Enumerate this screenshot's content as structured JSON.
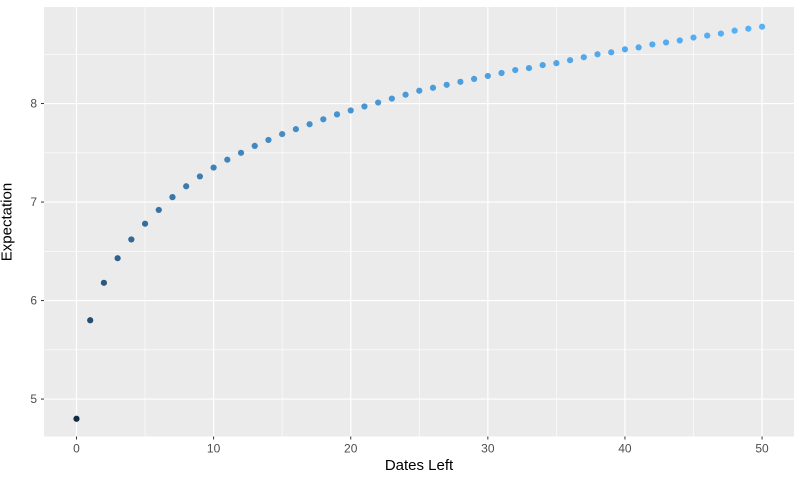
{
  "chart_data": {
    "type": "scatter",
    "title": "",
    "xlabel": "Dates Left",
    "ylabel": "Expectation",
    "x": [
      0,
      1,
      2,
      3,
      4,
      5,
      6,
      7,
      8,
      9,
      10,
      11,
      12,
      13,
      14,
      15,
      16,
      17,
      18,
      19,
      20,
      21,
      22,
      23,
      24,
      25,
      26,
      27,
      28,
      29,
      30,
      31,
      32,
      33,
      34,
      35,
      36,
      37,
      38,
      39,
      40,
      41,
      42,
      43,
      44,
      45,
      46,
      47,
      48,
      49,
      50
    ],
    "y": [
      4.8,
      5.8,
      6.18,
      6.43,
      6.62,
      6.78,
      6.92,
      7.05,
      7.16,
      7.26,
      7.35,
      7.43,
      7.5,
      7.57,
      7.63,
      7.69,
      7.74,
      7.79,
      7.84,
      7.89,
      7.93,
      7.97,
      8.01,
      8.05,
      8.09,
      8.13,
      8.16,
      8.19,
      8.22,
      8.25,
      8.28,
      8.31,
      8.34,
      8.36,
      8.39,
      8.41,
      8.44,
      8.47,
      8.5,
      8.52,
      8.55,
      8.57,
      8.6,
      8.62,
      8.64,
      8.67,
      8.69,
      8.71,
      8.74,
      8.76,
      8.78
    ],
    "x_ticks": [
      0,
      10,
      20,
      30,
      40,
      50
    ],
    "y_ticks": [
      5,
      6,
      7,
      8
    ],
    "x_minor_gridlines": [
      5,
      15,
      25,
      35,
      45
    ],
    "y_minor_gridlines": [
      5.5,
      6.5,
      7.5,
      8.5
    ],
    "xlim": [
      -2.37,
      52.33
    ],
    "ylim": [
      4.62,
      8.98
    ],
    "grid": "on",
    "legend": "none",
    "style": {
      "panel_bg": "#EBEBEB",
      "grid_color": "#FFFFFF",
      "tick_color": "#333333",
      "tick_label_color": "#4D4D4D",
      "axis_title_color": "#000000",
      "point_color_low": "#132B43",
      "point_color_high": "#56B1F7",
      "point_color_domain": [
        4.8,
        8.78
      ]
    }
  }
}
